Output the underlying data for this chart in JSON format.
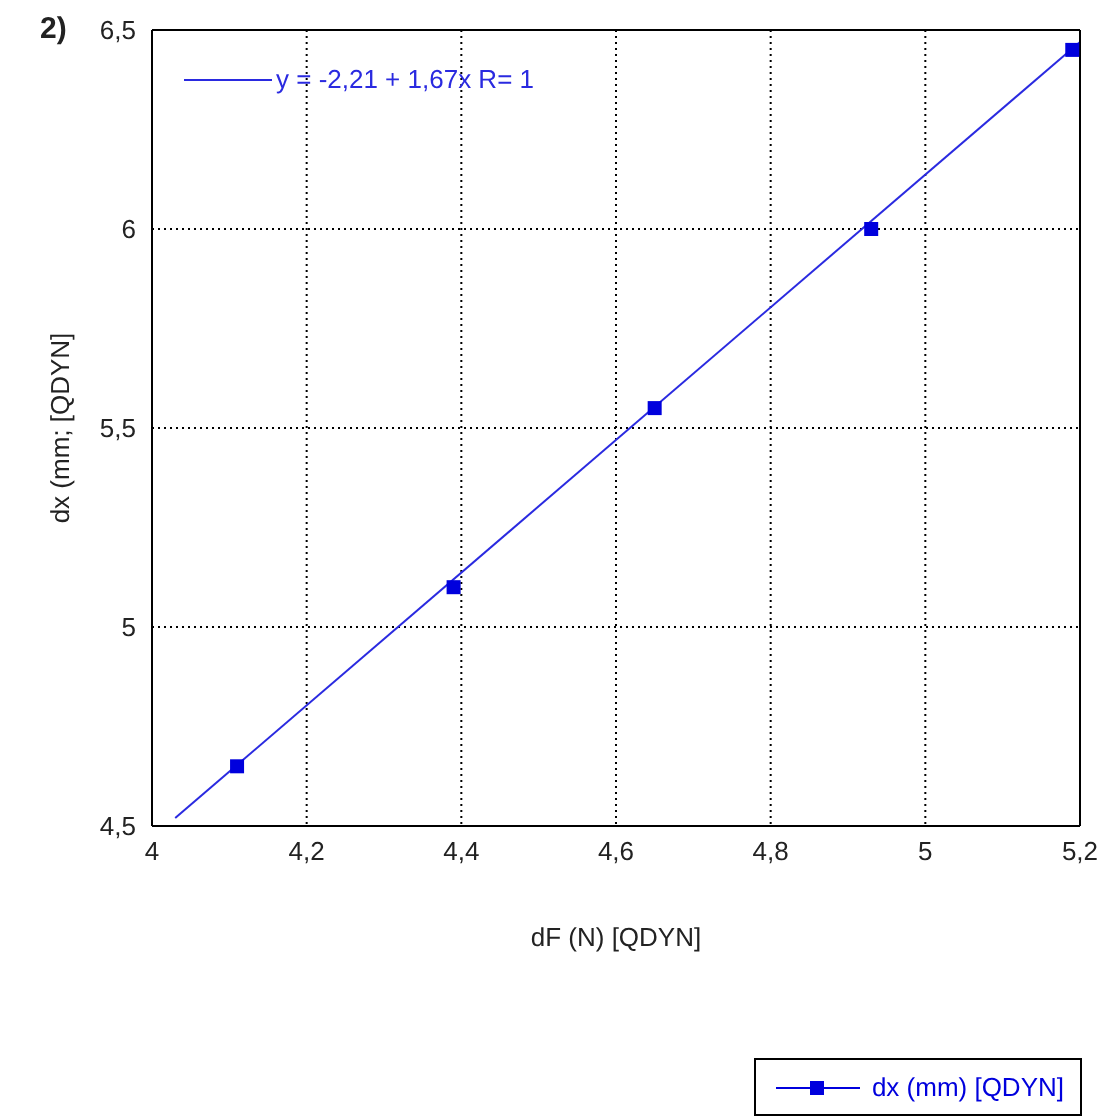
{
  "chart_data": {
    "type": "scatter",
    "title": "2)",
    "xlabel": "dF (N) [QDYN]",
    "ylabel": "dx (mm; [QDYN]",
    "x": [
      4.11,
      4.39,
      4.65,
      4.93,
      5.19
    ],
    "series": [
      {
        "name": "dx (mm) [QDYN]",
        "color": "#0000dd",
        "values": [
          4.65,
          5.1,
          5.55,
          6.0,
          6.45
        ],
        "marker": "square"
      },
      {
        "name": "y = -2,21 + 1,67x   R= 1",
        "type": "line",
        "color": "#2a2ae0",
        "x": [
          4.03,
          5.2
        ],
        "values": [
          4.52,
          6.47
        ]
      }
    ],
    "xlim": [
      4,
      5.2
    ],
    "xticks": [
      4,
      {
        "value": 4.2,
        "label": "4,2"
      },
      {
        "value": 4.4,
        "label": "4,4"
      },
      {
        "value": 4.6,
        "label": "4,6"
      },
      {
        "value": 4.8,
        "label": "4,8"
      },
      5,
      {
        "value": 5.2,
        "label": "5,2"
      }
    ],
    "ylim": [
      4.5,
      6.5
    ],
    "yticks": [
      {
        "value": 4.5,
        "label": "4,5"
      },
      5,
      {
        "value": 5.5,
        "label": "5,5"
      },
      6,
      {
        "value": 6.5,
        "label": "6,5"
      }
    ],
    "grid": true,
    "legend": "bottom right"
  }
}
